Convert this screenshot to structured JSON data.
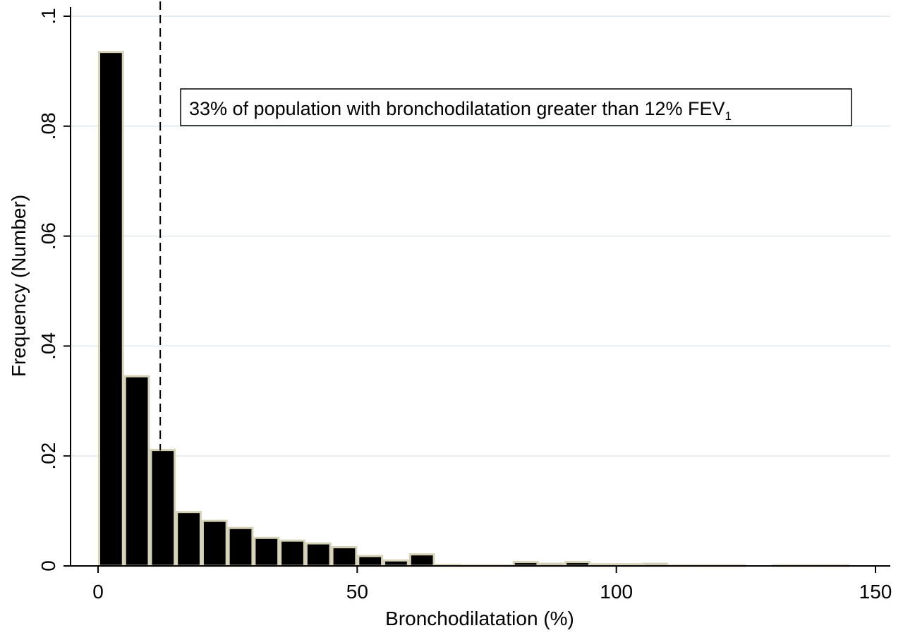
{
  "chart_data": {
    "type": "bar",
    "subtype": "histogram",
    "bin_width": 5,
    "bins": [
      {
        "x0": 0,
        "x1": 5,
        "value": 0.0935
      },
      {
        "x0": 5,
        "x1": 10,
        "value": 0.0345
      },
      {
        "x0": 10,
        "x1": 15,
        "value": 0.0211
      },
      {
        "x0": 15,
        "x1": 20,
        "value": 0.0098
      },
      {
        "x0": 20,
        "x1": 25,
        "value": 0.0082
      },
      {
        "x0": 25,
        "x1": 30,
        "value": 0.0069
      },
      {
        "x0": 30,
        "x1": 35,
        "value": 0.0051
      },
      {
        "x0": 35,
        "x1": 40,
        "value": 0.0046
      },
      {
        "x0": 40,
        "x1": 45,
        "value": 0.0041
      },
      {
        "x0": 45,
        "x1": 50,
        "value": 0.0034
      },
      {
        "x0": 50,
        "x1": 55,
        "value": 0.0018
      },
      {
        "x0": 55,
        "x1": 60,
        "value": 0.001
      },
      {
        "x0": 60,
        "x1": 65,
        "value": 0.0021
      },
      {
        "x0": 65,
        "x1": 70,
        "value": 0.0002
      },
      {
        "x0": 70,
        "x1": 75,
        "value": 0.0001
      },
      {
        "x0": 75,
        "x1": 80,
        "value": 0.0001
      },
      {
        "x0": 80,
        "x1": 85,
        "value": 0.0007
      },
      {
        "x0": 85,
        "x1": 90,
        "value": 0.0004
      },
      {
        "x0": 90,
        "x1": 95,
        "value": 0.0007
      },
      {
        "x0": 95,
        "x1": 100,
        "value": 0.0003
      },
      {
        "x0": 100,
        "x1": 105,
        "value": 0.0003
      },
      {
        "x0": 105,
        "x1": 110,
        "value": 0.0004
      },
      {
        "x0": 110,
        "x1": 115,
        "value": 0.0001
      },
      {
        "x0": 115,
        "x1": 120,
        "value": 0.0001
      },
      {
        "x0": 120,
        "x1": 125,
        "value": 0.0001
      },
      {
        "x0": 125,
        "x1": 130,
        "value": 0.0
      },
      {
        "x0": 130,
        "x1": 135,
        "value": 0.0001
      },
      {
        "x0": 135,
        "x1": 140,
        "value": 0.0001
      },
      {
        "x0": 140,
        "x1": 145,
        "value": 0.0001
      }
    ],
    "xlabel": "Bronchodilatation (%)",
    "ylabel": "Frequency (Number)",
    "xlim": [
      0,
      150
    ],
    "ylim": [
      0,
      0.1
    ],
    "xticks": [
      {
        "value": 0,
        "label": "0"
      },
      {
        "value": 50,
        "label": "50"
      },
      {
        "value": 100,
        "label": "100"
      },
      {
        "value": 150,
        "label": "150"
      }
    ],
    "yticks": [
      {
        "value": 0,
        "label": "0"
      },
      {
        "value": 0.02,
        "label": ".02"
      },
      {
        "value": 0.04,
        "label": ".04"
      },
      {
        "value": 0.06,
        "label": ".06"
      },
      {
        "value": 0.08,
        "label": ".08"
      },
      {
        "value": 0.1,
        "label": ".1"
      }
    ],
    "reference_line": {
      "x": 12,
      "style": "dashed"
    },
    "annotation": {
      "text": "33% of population with bronchodilatation greater than 12% FEV",
      "subscript": "1"
    },
    "grid": "horizontal",
    "colors": {
      "bar_fill": "#000000",
      "bar_outline": "#d6d2b8",
      "grid": "#e6edf0",
      "axis": "#000000"
    }
  }
}
